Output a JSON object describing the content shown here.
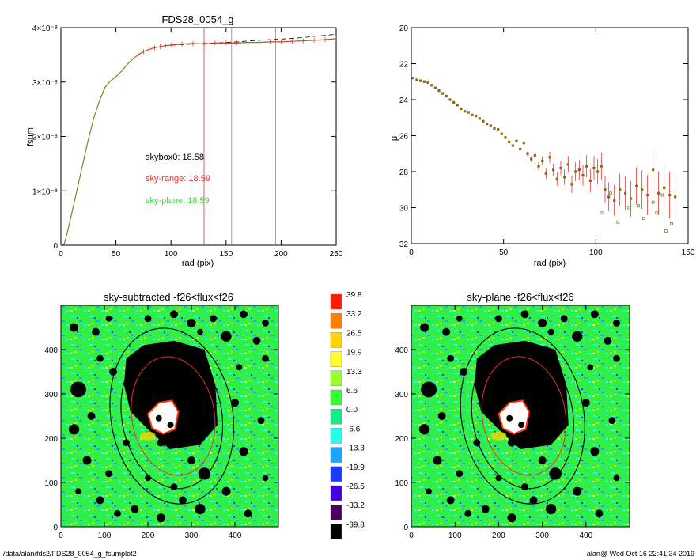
{
  "footer": {
    "left": "/data/alan/fds2/FDS28_0054_g_fsumplot2",
    "right": "alan@  Wed Oct 16 22:41:34 2019"
  },
  "chart_data": [
    {
      "type": "line",
      "title": "FDS28_0054_g",
      "xlabel": "rad (pix)",
      "ylabel": "fsum",
      "xlim": [
        0,
        250
      ],
      "ylim": [
        0,
        4e-08
      ],
      "xticks": [
        "0",
        "50",
        "100",
        "150",
        "200",
        "250"
      ],
      "yticks": [
        "0",
        "1×10⁻⁸",
        "2×10⁻⁸",
        "3×10⁻⁸",
        "4×10⁻⁸"
      ],
      "annotations": [
        {
          "text": "skybox0: 18.58",
          "color": "#000000"
        },
        {
          "text": "sky-range: 18.59",
          "color": "#e8302a"
        },
        {
          "text": "sky-plane: 18.59",
          "color": "#33dd33"
        }
      ],
      "vlines": [
        {
          "x": 130,
          "color": "#e8302a"
        },
        {
          "x": 155,
          "color": "#888888"
        },
        {
          "x": 195,
          "color": "#888888"
        }
      ],
      "series": [
        {
          "x": [
            0,
            3,
            6,
            10,
            15,
            20,
            25,
            30,
            35,
            40,
            45,
            50,
            55,
            60,
            65,
            70,
            75,
            80,
            85,
            90,
            95,
            100,
            110,
            120,
            130,
            140,
            150,
            160,
            170,
            180,
            190,
            200,
            210,
            220,
            230,
            240,
            250
          ],
          "y": [
            0,
            2e-10,
            2.5e-09,
            6e-09,
            1.05e-08,
            1.5e-08,
            1.95e-08,
            2.35e-08,
            2.65e-08,
            2.9e-08,
            3.02e-08,
            3.1e-08,
            3.2e-08,
            3.32e-08,
            3.42e-08,
            3.5e-08,
            3.56e-08,
            3.6e-08,
            3.63e-08,
            3.65e-08,
            3.67e-08,
            3.68e-08,
            3.7e-08,
            3.71e-08,
            3.7e-08,
            3.72e-08,
            3.72e-08,
            3.72e-08,
            3.73e-08,
            3.73e-08,
            3.74e-08,
            3.74e-08,
            3.75e-08,
            3.76e-08,
            3.77e-08,
            3.78e-08,
            3.8e-08
          ]
        },
        {
          "x": [
            100,
            120,
            140,
            160,
            180,
            200,
            220,
            240,
            250
          ],
          "y": [
            3.68e-08,
            3.7e-08,
            3.72e-08,
            3.74e-08,
            3.77e-08,
            3.79e-08,
            3.82e-08,
            3.86e-08,
            3.88e-08
          ]
        }
      ]
    },
    {
      "type": "scatter",
      "xlabel": "rad (pix)",
      "ylabel": "μ",
      "xlim": [
        0,
        150
      ],
      "ylim": [
        32,
        20
      ],
      "xticks": [
        "0",
        "50",
        "100",
        "150"
      ],
      "yticks": [
        "20",
        "22",
        "24",
        "26",
        "28",
        "30",
        "32"
      ],
      "series": [
        {
          "x": [
            1,
            3,
            5,
            7,
            9,
            11,
            13,
            15,
            17,
            19,
            21,
            23,
            25,
            27,
            29,
            31,
            33,
            35,
            37,
            39,
            41,
            43,
            45,
            47,
            49,
            51,
            53,
            55,
            57,
            59,
            61,
            63,
            65,
            67,
            69,
            71,
            73,
            75,
            77,
            79,
            81,
            83,
            85,
            87,
            89,
            91,
            93,
            95,
            97,
            99,
            101,
            103,
            105,
            107,
            110,
            113,
            116,
            119,
            122,
            125,
            128,
            131,
            134,
            137,
            140,
            143
          ],
          "y": [
            22.8,
            22.9,
            22.95,
            23.0,
            23.05,
            23.2,
            23.35,
            23.5,
            23.65,
            23.8,
            24.0,
            24.15,
            24.3,
            24.5,
            24.65,
            24.7,
            24.85,
            24.9,
            25.05,
            25.2,
            25.35,
            25.45,
            25.6,
            25.65,
            25.9,
            26.1,
            26.35,
            26.55,
            26.3,
            26.75,
            26.4,
            27.0,
            27.3,
            27.1,
            27.7,
            27.4,
            28.1,
            27.2,
            27.9,
            28.4,
            27.8,
            28.3,
            27.6,
            28.7,
            28.0,
            27.9,
            28.2,
            27.7,
            28.5,
            27.8,
            28.0,
            27.7,
            29.0,
            29.4,
            29.6,
            29.0,
            29.2,
            29.5,
            28.8,
            29.0,
            29.3,
            27.9,
            29.2,
            28.9,
            29.3,
            29.4
          ]
        },
        {
          "x": [
            103,
            108,
            112,
            118,
            123,
            126,
            131,
            133,
            136,
            138,
            141
          ],
          "y": [
            30.3,
            29.2,
            30.8,
            30.0,
            29.9,
            30.6,
            29.7,
            30.3,
            29.3,
            31.3,
            30.9
          ]
        }
      ]
    },
    {
      "type": "heatmap",
      "title": "sky-subtracted -f26<flux<f26",
      "xlim": [
        0,
        500
      ],
      "ylim": [
        0,
        500
      ],
      "xticks": [
        "0",
        "100",
        "200",
        "300",
        "400"
      ],
      "yticks": [
        "0",
        "100",
        "200",
        "300",
        "400"
      ]
    },
    {
      "type": "heatmap",
      "title": "sky-plane -f26<flux<f26",
      "xlim": [
        0,
        500
      ],
      "ylim": [
        0,
        500
      ],
      "xticks": [
        "0",
        "100",
        "200",
        "300",
        "400"
      ],
      "yticks": [
        "0",
        "100",
        "200",
        "300",
        "400"
      ]
    },
    {
      "type": "table",
      "colorbar": {
        "labels": [
          "39.8",
          "33.2",
          "26.5",
          "19.9",
          "13.3",
          "6.6",
          "0.0",
          "-6.6",
          "-13.3",
          "-19.9",
          "-26.5",
          "-33.2",
          "-39.8"
        ],
        "colors": [
          "#ff1a00",
          "#ff7f00",
          "#ffd400",
          "#ffff2a",
          "#9aff2e",
          "#33ff33",
          "#11ee88",
          "#22ffee",
          "#1aa8ff",
          "#1a3aff",
          "#4400dd",
          "#4a0060",
          "#000000"
        ]
      }
    }
  ]
}
